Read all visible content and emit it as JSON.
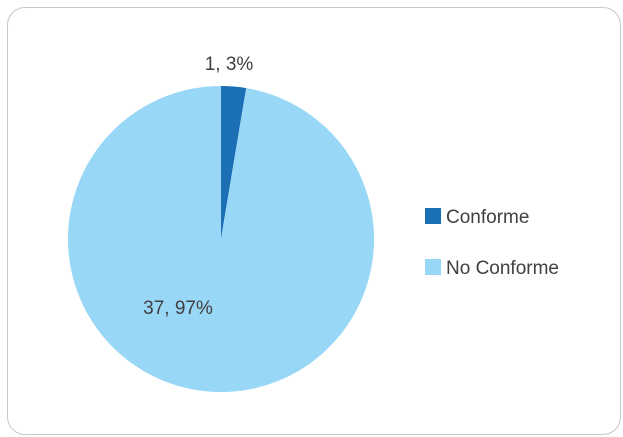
{
  "chart_data": {
    "type": "pie",
    "title": "",
    "categories": [
      "Conforme",
      "No Conforme"
    ],
    "values": [
      1,
      37
    ],
    "percent_labels": [
      "3%",
      "97%"
    ],
    "data_labels": [
      "1, 3%",
      "37, 97%"
    ],
    "colors": [
      "#1a6fb5",
      "#99d7f7"
    ],
    "legend": {
      "position": "right",
      "entries": [
        "Conforme",
        "No Conforme"
      ]
    }
  }
}
